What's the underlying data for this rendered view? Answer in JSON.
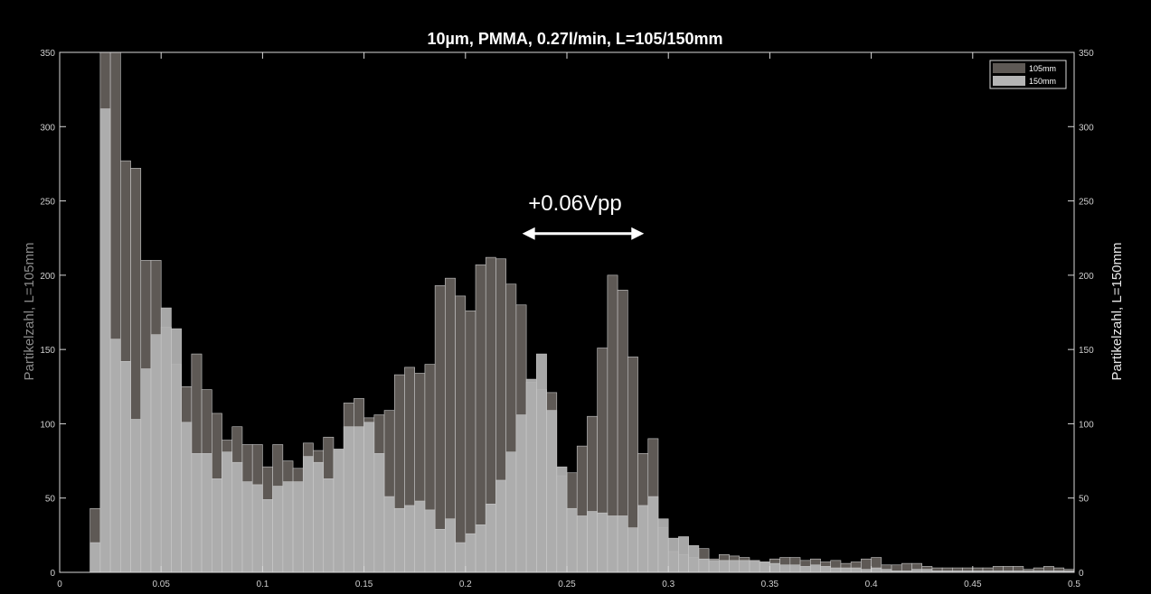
{
  "chart_data": {
    "type": "bar",
    "title": "10µm, PMMA, 0.27l/min, L=105/150mm",
    "ylabel_left": "Partikelzahl, L=105mm",
    "ylabel_right": "Partikelzahl, L=150mm",
    "xlim": [
      0,
      0.5
    ],
    "ylim": [
      0,
      350
    ],
    "xticks": [
      0,
      0.05,
      0.1,
      0.15,
      0.2,
      0.25,
      0.3,
      0.35,
      0.4,
      0.45,
      0.5
    ],
    "xtick_labels": [
      "0",
      "0.05",
      "0.1",
      "0.15",
      "0.2",
      "0.25",
      "0.3",
      "0.35",
      "0.4",
      "0.45",
      "0.5"
    ],
    "yticks": [
      0,
      50,
      100,
      150,
      200,
      250,
      300,
      350
    ],
    "ytick_labels": [
      "0",
      "50",
      "100",
      "150",
      "200",
      "250",
      "300",
      "350"
    ],
    "bin_start": 0.015,
    "bin_width": 0.005,
    "legend_position": "top-right",
    "grid": false,
    "annotation": {
      "text": "+0.06Vpp",
      "x_from": 0.228,
      "x_to": 0.288,
      "y": 228
    },
    "series": [
      {
        "name": "105mm",
        "color": "#5e5955",
        "values": [
          43,
          350,
          350,
          277,
          272,
          210,
          210,
          165,
          140,
          125,
          147,
          123,
          107,
          89,
          98,
          86,
          86,
          71,
          86,
          75,
          70,
          87,
          82,
          91,
          82,
          114,
          117,
          104,
          106,
          109,
          133,
          138,
          134,
          140,
          193,
          198,
          186,
          176,
          207,
          212,
          211,
          194,
          180,
          128,
          123,
          121,
          65,
          67,
          85,
          105,
          151,
          200,
          190,
          145,
          80,
          90,
          30,
          14,
          12,
          10,
          16,
          9,
          12,
          11,
          10,
          8,
          7,
          9,
          10,
          10,
          8,
          9,
          7,
          8,
          6,
          7,
          9,
          10,
          5,
          5,
          6,
          6,
          4,
          3,
          3,
          3,
          3,
          3,
          3,
          4,
          4,
          4,
          2,
          3,
          4,
          3,
          2
        ]
      },
      {
        "name": "150mm",
        "color": "#b4b4b4",
        "values": [
          20,
          312,
          157,
          142,
          103,
          137,
          160,
          178,
          164,
          101,
          80,
          80,
          63,
          81,
          74,
          61,
          59,
          49,
          58,
          61,
          61,
          78,
          74,
          63,
          83,
          98,
          98,
          101,
          80,
          51,
          43,
          45,
          48,
          42,
          29,
          36,
          20,
          26,
          32,
          46,
          62,
          81,
          106,
          130,
          147,
          109,
          71,
          43,
          38,
          41,
          40,
          38,
          38,
          30,
          45,
          51,
          36,
          23,
          24,
          18,
          9,
          8,
          8,
          8,
          8,
          8,
          7,
          6,
          5,
          5,
          4,
          5,
          4,
          3,
          3,
          3,
          2,
          3,
          2,
          1,
          1,
          2,
          2,
          1,
          1,
          1,
          1,
          1,
          1,
          1,
          1,
          1,
          1,
          1,
          1,
          1,
          1
        ]
      }
    ]
  }
}
